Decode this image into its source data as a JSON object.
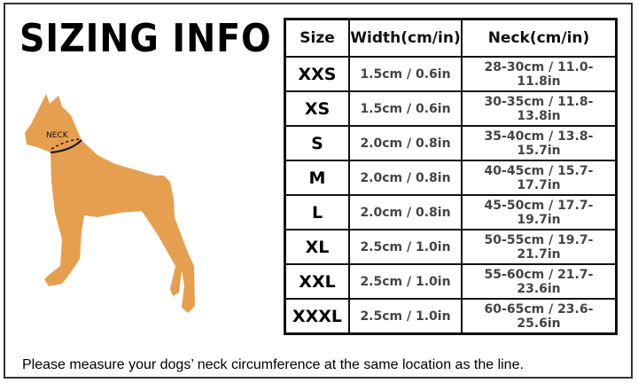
{
  "title": "SIZING INFO",
  "dog_label": "NECK",
  "dog_color": "#e69f4e",
  "table": {
    "headers": [
      "Size",
      "Width(cm/in)",
      "Neck(cm/in)"
    ],
    "rows": [
      {
        "size": "XXS",
        "width": "1.5cm / 0.6in",
        "neck": "28-30cm / 11.0-11.8in"
      },
      {
        "size": "XS",
        "width": "1.5cm / 0.6in",
        "neck": "30-35cm / 11.8-13.8in"
      },
      {
        "size": "S",
        "width": "2.0cm / 0.8in",
        "neck": "35-40cm / 13.8-15.7in"
      },
      {
        "size": "M",
        "width": "2.0cm / 0.8in",
        "neck": "40-45cm / 15.7-17.7in"
      },
      {
        "size": "L",
        "width": "2.0cm / 0.8in",
        "neck": "45-50cm / 17.7-19.7in"
      },
      {
        "size": "XL",
        "width": "2.5cm / 1.0in",
        "neck": "50-55cm / 19.7-21.7in"
      },
      {
        "size": "XXL",
        "width": "2.5cm / 1.0in",
        "neck": "55-60cm / 21.7-23.6in"
      },
      {
        "size": "XXXL",
        "width": "2.5cm / 1.0in",
        "neck": "60-65cm / 23.6-25.6in"
      }
    ]
  },
  "note": "Please measure your dogs’  neck circumference at the same location as the line."
}
